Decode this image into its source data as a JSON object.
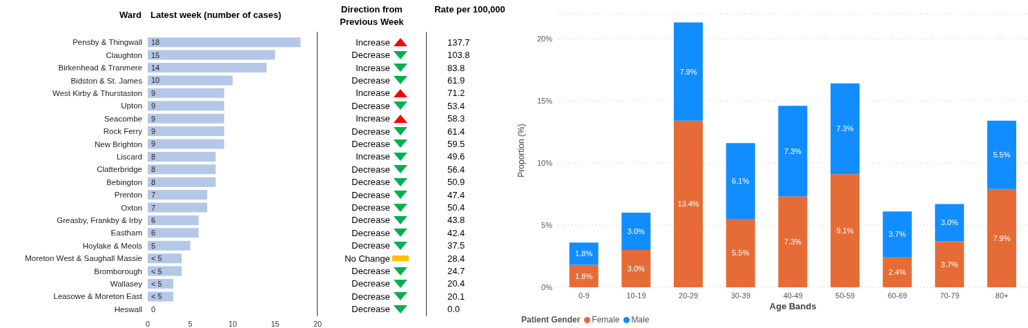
{
  "chart_data": [
    {
      "type": "bar",
      "orientation": "horizontal",
      "title": "Latest week (number of cases)",
      "ylabel": "Ward",
      "categories": [
        "Pensby & Thingwall",
        "Claughton",
        "Birkenhead & Tranmere",
        "Bidston & St. James",
        "West Kirby & Thurstaston",
        "Upton",
        "Seacombe",
        "Rock Ferry",
        "New Brighton",
        "Liscard",
        "Clatterbridge",
        "Bebington",
        "Prenton",
        "Oxton",
        "Greasby, Frankby & Irby",
        "Eastham",
        "Hoylake & Meols",
        "Moreton West & Saughall Massie",
        "Bromborough",
        "Wallasey",
        "Leasowe & Moreton East",
        "Heswall"
      ],
      "values": [
        18,
        15,
        14,
        10,
        9,
        9,
        9,
        9,
        9,
        8,
        8,
        8,
        7,
        7,
        6,
        6,
        5,
        4,
        4,
        3,
        3,
        0
      ],
      "value_labels": [
        "18",
        "15",
        "14",
        "10",
        "9",
        "9",
        "9",
        "9",
        "9",
        "8",
        "8",
        "8",
        "7",
        "7",
        "6",
        "6",
        "5",
        "< 5",
        "< 5",
        "< 5",
        "< 5",
        "0"
      ],
      "color": "#b4c7e7",
      "xlim": [
        0,
        20
      ],
      "xticks": [
        0,
        5,
        10,
        15,
        20
      ],
      "grid": false
    },
    {
      "type": "other",
      "title": "Direction from Previous Week",
      "annotations": [
        "Increase",
        "Decrease",
        "Increase",
        "Decrease",
        "Increase",
        "Decrease",
        "Increase",
        "Decrease",
        "Decrease",
        "Increase",
        "Decrease",
        "Decrease",
        "Decrease",
        "Decrease",
        "Decrease",
        "Decrease",
        "Decrease",
        "No Change",
        "Decrease",
        "Decrease",
        "Decrease",
        "Decrease"
      ],
      "colors": [
        "#ff0000",
        "#00b050",
        "#00b050",
        "#00b050",
        "#ff0000",
        "#00b050",
        "#ff0000",
        "#00b050",
        "#00b050",
        "#00b050",
        "#00b050",
        "#00b050",
        "#00b050",
        "#00b050",
        "#00b050",
        "#00b050",
        "#00b050",
        "#ffc000",
        "#00b050",
        "#00b050",
        "#00b050",
        "#00b050"
      ]
    },
    {
      "type": "other",
      "title": "Rate per 100,000",
      "annotations": [
        "137.7",
        "103.8",
        "83.8",
        "61.9",
        "71.2",
        "53.4",
        "58.3",
        "61.4",
        "59.5",
        "49.6",
        "56.4",
        "50.9",
        "47.4",
        "50.4",
        "43.8",
        "42.4",
        "37.5",
        "28.4",
        "24.7",
        "20.4",
        "20.1",
        "0.0"
      ]
    },
    {
      "type": "bar",
      "stacked": true,
      "xlabel": "Age Bands",
      "ylabel": "Proportion (%)",
      "legend_title": "Patient Gender",
      "legend": "bottom left",
      "grid": "y",
      "categories": [
        "0-9",
        "10-19",
        "20-29",
        "30-39",
        "40-49",
        "50-59",
        "60-69",
        "70-79",
        "80+"
      ],
      "ylim": [
        0,
        22
      ],
      "yticks": [
        {
          "value": 0,
          "label": "0%"
        },
        {
          "value": 5,
          "label": "5%"
        },
        {
          "value": 10,
          "label": "10%"
        },
        {
          "value": 15,
          "label": "15%"
        },
        {
          "value": 20,
          "label": "20%"
        }
      ],
      "series": [
        {
          "name": "Female",
          "color": "#e66c37",
          "values": [
            1.8,
            3.0,
            13.4,
            5.5,
            7.3,
            9.1,
            2.4,
            3.7,
            7.9
          ],
          "value_labels": [
            "1.8%",
            "3.0%",
            "13.4%",
            "5.5%",
            "7.3%",
            "9.1%",
            "2.4%",
            "3.7%",
            "7.9%"
          ]
        },
        {
          "name": "Male",
          "color": "#118dff",
          "values": [
            1.8,
            3.0,
            7.9,
            6.1,
            7.3,
            7.3,
            3.7,
            3.0,
            5.5
          ],
          "value_labels": [
            "1.8%",
            "3.0%",
            "7.9%",
            "6.1%",
            "7.3%",
            "7.3%",
            "3.7%",
            "3.0%",
            "5.5%"
          ]
        }
      ]
    }
  ]
}
